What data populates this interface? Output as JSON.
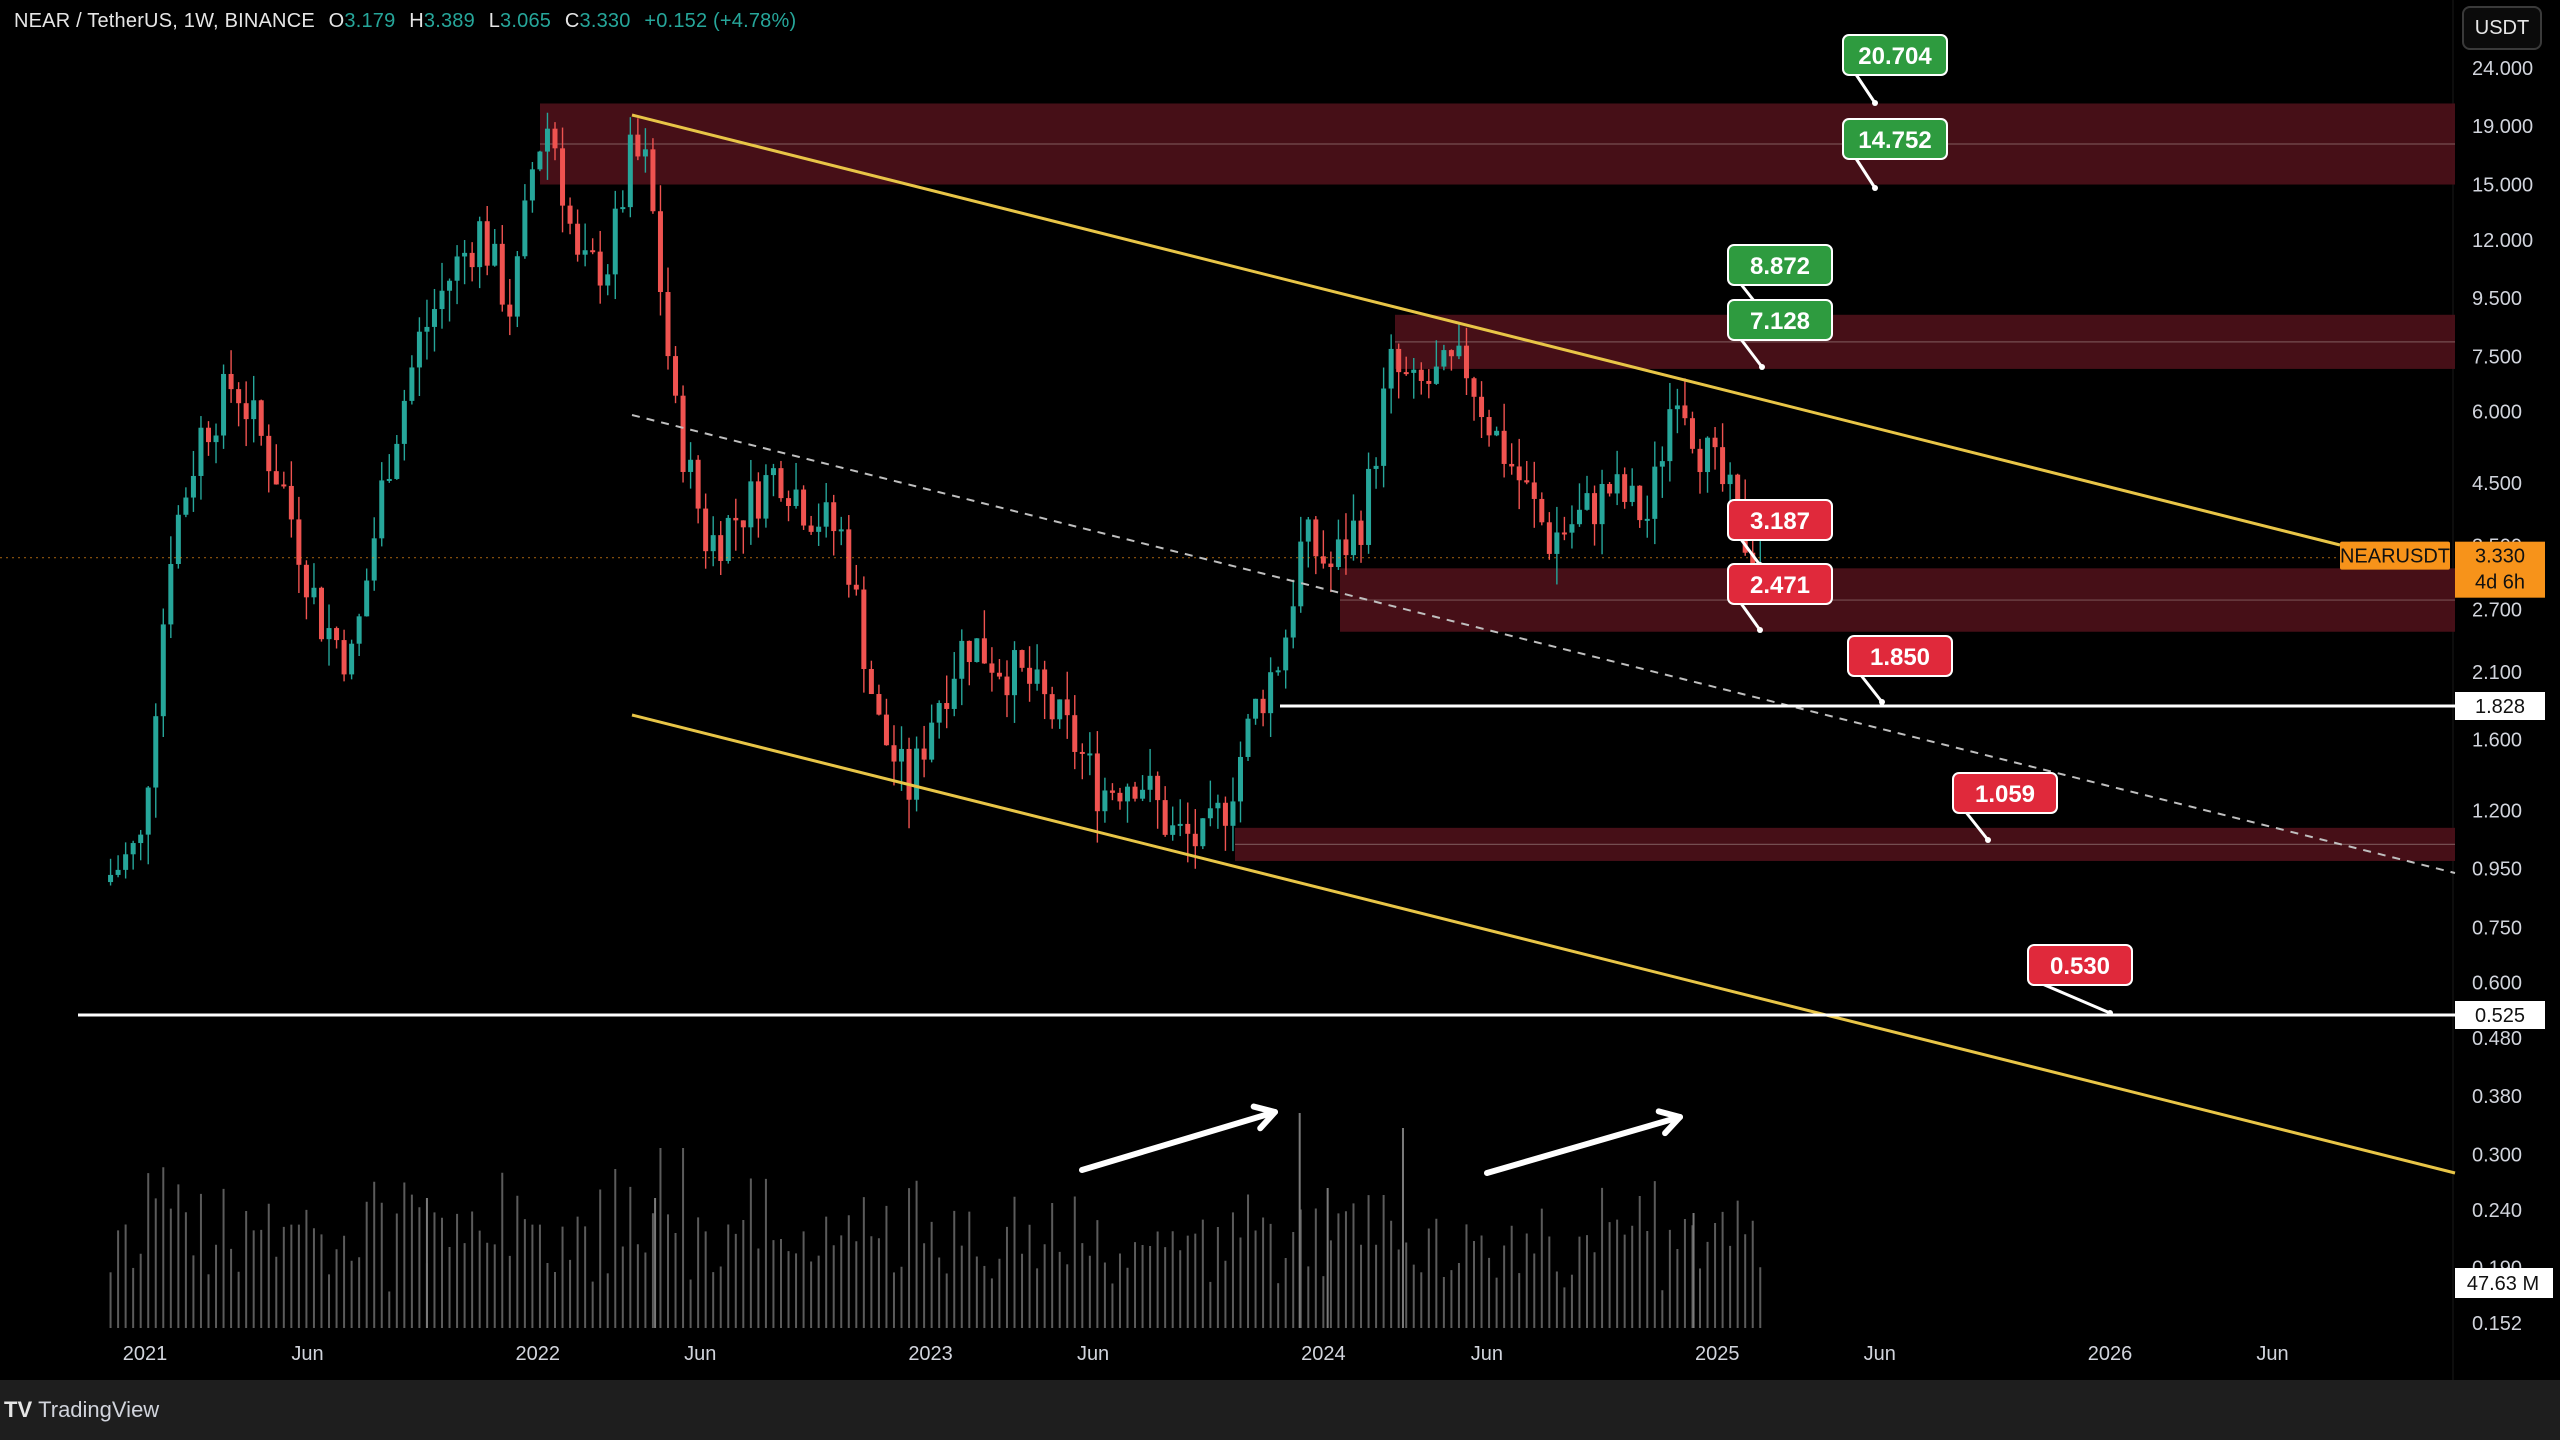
{
  "header": {
    "symbol": "NEAR / TetherUS, 1W, BINANCE",
    "open_label": "O",
    "open": "3.179",
    "high_label": "H",
    "high": "3.389",
    "low_label": "L",
    "low": "3.065",
    "close_label": "C",
    "close": "3.330",
    "change": "+0.152 (+4.78%)"
  },
  "currency_button": "USDT",
  "footer": {
    "brand": "TradingView"
  },
  "colors": {
    "up": "#26a69a",
    "down": "#ef5350",
    "zone": "#4a1018",
    "trendline": "#e8c547",
    "support_line": "#ffffff",
    "price_tag": "#f7931a",
    "target_green": "#2e9b3f",
    "target_red": "#e0293b"
  },
  "chart_data": {
    "type": "candlestick",
    "scale": "log",
    "y_ticks": [
      "24.000",
      "19.000",
      "15.000",
      "12.000",
      "9.500",
      "7.500",
      "6.000",
      "4.500",
      "3.500",
      "2.700",
      "2.100",
      "1.600",
      "1.200",
      "0.950",
      "0.750",
      "0.600",
      "0.480",
      "0.380",
      "0.300",
      "0.240",
      "0.190",
      "0.152"
    ],
    "x_ticks": [
      "2021",
      "Jun",
      "2022",
      "Jun",
      "2023",
      "Jun",
      "2024",
      "Jun",
      "2025",
      "Jun",
      "2026",
      "Jun"
    ],
    "price_series": [
      [
        "2020-11-30",
        0.9
      ],
      [
        "2021-01-04",
        1.05
      ],
      [
        "2021-02-01",
        3.5
      ],
      [
        "2021-03-01",
        5.5
      ],
      [
        "2021-04-01",
        6.8
      ],
      [
        "2021-05-15",
        4.5
      ],
      [
        "2021-06-20",
        2.6
      ],
      [
        "2021-07-20",
        2.2
      ],
      [
        "2021-08-20",
        4.8
      ],
      [
        "2021-09-20",
        8.0
      ],
      [
        "2021-10-20",
        10.5
      ],
      [
        "2021-11-15",
        12.5
      ],
      [
        "2021-12-15",
        9.0
      ],
      [
        "2022-01-05",
        17.0
      ],
      [
        "2022-01-20",
        19.5
      ],
      [
        "2022-02-15",
        10.5
      ],
      [
        "2022-03-15",
        11.0
      ],
      [
        "2022-04-05",
        17.0
      ],
      [
        "2022-04-20",
        16.0
      ],
      [
        "2022-05-15",
        6.0
      ],
      [
        "2022-06-15",
        3.5
      ],
      [
        "2022-07-15",
        4.0
      ],
      [
        "2022-08-20",
        4.8
      ],
      [
        "2022-09-15",
        4.1
      ],
      [
        "2022-10-20",
        3.6
      ],
      [
        "2022-11-20",
        1.7
      ],
      [
        "2022-12-20",
        1.3
      ],
      [
        "2023-01-10",
        1.8
      ],
      [
        "2023-02-10",
        2.4
      ],
      [
        "2023-03-10",
        2.2
      ],
      [
        "2023-04-10",
        2.0
      ],
      [
        "2023-05-20",
        1.6
      ],
      [
        "2023-06-15",
        1.3
      ],
      [
        "2023-07-20",
        1.4
      ],
      [
        "2023-08-20",
        1.1
      ],
      [
        "2023-09-20",
        1.05
      ],
      [
        "2023-10-10",
        1.25
      ],
      [
        "2023-11-05",
        1.8
      ],
      [
        "2023-12-01",
        2.3
      ],
      [
        "2023-12-20",
        3.6
      ],
      [
        "2024-01-15",
        3.2
      ],
      [
        "2024-02-15",
        4.0
      ],
      [
        "2024-03-10",
        7.2
      ],
      [
        "2024-04-01",
        6.5
      ],
      [
        "2024-05-01",
        7.0
      ],
      [
        "2024-05-20",
        7.2
      ],
      [
        "2024-06-15",
        5.5
      ],
      [
        "2024-07-10",
        4.5
      ],
      [
        "2024-08-05",
        3.6
      ],
      [
        "2024-09-01",
        3.9
      ],
      [
        "2024-10-01",
        4.4
      ],
      [
        "2024-11-05",
        3.9
      ],
      [
        "2024-12-01",
        7.0
      ],
      [
        "2024-12-20",
        5.4
      ],
      [
        "2025-01-20",
        4.2
      ],
      [
        "2025-02-10",
        3.33
      ]
    ],
    "volume_unit": "M",
    "last_volume": "47.63 M",
    "current_price": "3.330",
    "current_countdown": "4d 6h",
    "ticker_tag": "NEARUSDT",
    "support_tags": [
      {
        "price": "1.828"
      },
      {
        "price": "0.525"
      }
    ],
    "resistance_zones": [
      {
        "low": 15.0,
        "high": 20.8
      },
      {
        "low": 7.13,
        "high": 8.87
      },
      {
        "low": 2.47,
        "high": 3.19
      },
      {
        "low": 0.98,
        "high": 1.12
      }
    ],
    "targets": [
      {
        "label": "20.704",
        "color": "green"
      },
      {
        "label": "14.752",
        "color": "green"
      },
      {
        "label": "8.872",
        "color": "green"
      },
      {
        "label": "7.128",
        "color": "green"
      },
      {
        "label": "3.187",
        "color": "red"
      },
      {
        "label": "2.471",
        "color": "red"
      },
      {
        "label": "1.850",
        "color": "red"
      },
      {
        "label": "1.059",
        "color": "red"
      },
      {
        "label": "0.530",
        "color": "red"
      }
    ]
  }
}
